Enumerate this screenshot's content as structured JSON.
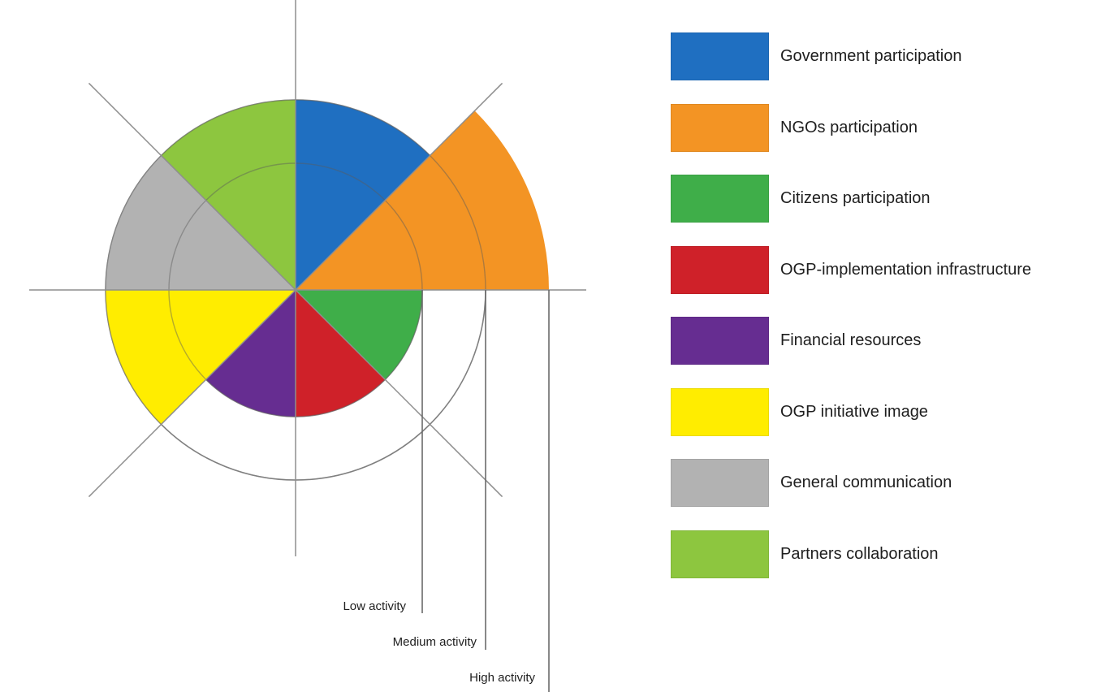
{
  "chart_data": {
    "type": "polar-area",
    "levels": [
      {
        "name": "Low activity",
        "value": 1
      },
      {
        "name": "Medium activity",
        "value": 1.5
      },
      {
        "name": "High activity",
        "value": 2
      }
    ],
    "max_value": 2,
    "categories": [
      {
        "name": "Government participation",
        "value": 1.5,
        "color": "#1f6fc1"
      },
      {
        "name": "NGOs participation",
        "value": 2,
        "color": "#f39424"
      },
      {
        "name": "Citizens participation",
        "value": 1,
        "color": "#3fae49"
      },
      {
        "name": "OGP-implementation infrastructure",
        "value": 1,
        "color": "#cf2129"
      },
      {
        "name": "Financial resources",
        "value": 1,
        "color": "#662d91"
      },
      {
        "name": "OGP initiative image",
        "value": 1.5,
        "color": "#ffed00"
      },
      {
        "name": "General communication",
        "value": 1.5,
        "color": "#b2b2b2"
      },
      {
        "name": "Partners collaboration",
        "value": 1.5,
        "color": "#8dc63f"
      }
    ]
  }
}
